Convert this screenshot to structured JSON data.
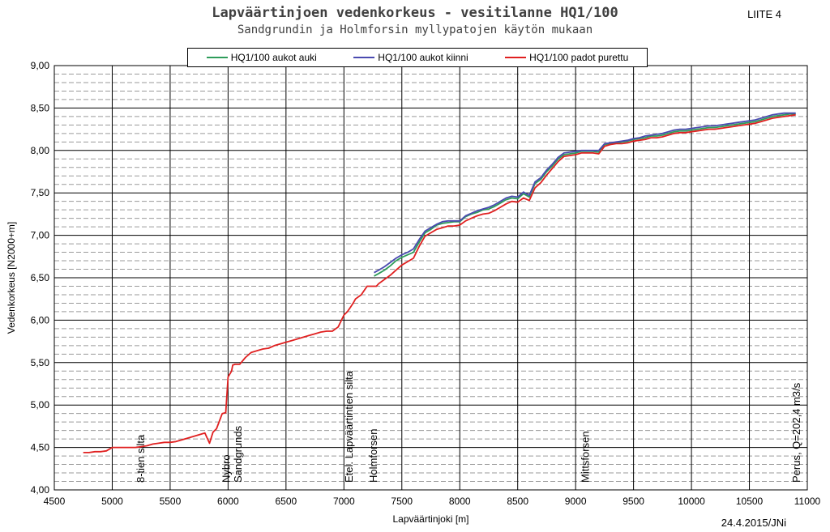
{
  "header": {
    "title": "Lapväärtinjoen vedenkorkeus - vesitilanne HQ1/100",
    "subtitle": "Sandgrundin ja Holmforsin myllypatojen käytön mukaan",
    "appendix": "LIITE 4",
    "date": "24.4.2015/JNi"
  },
  "chart_data": {
    "type": "line",
    "title": "Lapväärtinjoen vedenkorkeus - vesitilanne HQ1/100",
    "subtitle": "Sandgrundin ja Holmforsin myllypatojen käytön mukaan",
    "xlabel": "Lapväärtinjoki [m]",
    "ylabel": "Vedenkorkeus [N2000+m]",
    "xlim": [
      4500,
      11000
    ],
    "ylim": [
      4.0,
      9.0
    ],
    "xticks": [
      4500,
      5000,
      5500,
      6000,
      6500,
      7000,
      7500,
      8000,
      8500,
      9000,
      9500,
      10000,
      10500,
      11000
    ],
    "yticks": [
      "4,00",
      "4,50",
      "5,00",
      "5,50",
      "6,00",
      "6,50",
      "7,00",
      "7,50",
      "8,00",
      "8,50",
      "9,00"
    ],
    "grid": true,
    "legend_position": "top",
    "series": [
      {
        "name": "HQ1/100 aukot auki",
        "color": "#2e9c5a",
        "x": [
          7260,
          7300,
          7350,
          7400,
          7450,
          7500,
          7550,
          7600,
          7650,
          7700,
          7750,
          7800,
          7850,
          7900,
          7950,
          8000,
          8050,
          8100,
          8150,
          8200,
          8250,
          8300,
          8350,
          8400,
          8450,
          8500,
          8550,
          8600,
          8650,
          8700,
          8750,
          8800,
          8850,
          8900,
          8950,
          9000,
          9050,
          9100,
          9150,
          9200,
          9250,
          9300,
          9350,
          9400,
          9450,
          9500,
          9550,
          9600,
          9650,
          9700,
          9750,
          9800,
          9850,
          9900,
          9950,
          10000,
          10050,
          10100,
          10150,
          10200,
          10250,
          10300,
          10350,
          10400,
          10450,
          10500,
          10550,
          10600,
          10650,
          10700,
          10750,
          10800,
          10850,
          10900
        ],
        "y": [
          6.52,
          6.55,
          6.59,
          6.64,
          6.7,
          6.74,
          6.77,
          6.8,
          6.92,
          7.03,
          7.07,
          7.12,
          7.14,
          7.15,
          7.16,
          7.16,
          7.22,
          7.25,
          7.27,
          7.3,
          7.31,
          7.34,
          7.38,
          7.42,
          7.44,
          7.43,
          7.49,
          7.45,
          7.61,
          7.66,
          7.75,
          7.82,
          7.9,
          7.95,
          7.96,
          7.97,
          7.99,
          7.99,
          7.99,
          7.98,
          8.07,
          8.08,
          8.09,
          8.1,
          8.11,
          8.13,
          8.14,
          8.15,
          8.17,
          8.17,
          8.18,
          8.2,
          8.22,
          8.23,
          8.23,
          8.24,
          8.25,
          8.26,
          8.27,
          8.27,
          8.28,
          8.29,
          8.3,
          8.31,
          8.32,
          8.33,
          8.34,
          8.36,
          8.38,
          8.4,
          8.41,
          8.42,
          8.43,
          8.43
        ]
      },
      {
        "name": "HQ1/100 aukot kiinni",
        "color": "#4a4ab0",
        "x": [
          7260,
          7300,
          7350,
          7400,
          7450,
          7500,
          7550,
          7600,
          7650,
          7700,
          7750,
          7800,
          7850,
          7900,
          7950,
          8000,
          8050,
          8100,
          8150,
          8200,
          8250,
          8300,
          8350,
          8400,
          8450,
          8500,
          8550,
          8600,
          8650,
          8700,
          8750,
          8800,
          8850,
          8900,
          8950,
          9000,
          9050,
          9100,
          9150,
          9200,
          9250,
          9300,
          9350,
          9400,
          9450,
          9500,
          9550,
          9600,
          9650,
          9700,
          9750,
          9800,
          9850,
          9900,
          9950,
          10000,
          10050,
          10100,
          10150,
          10200,
          10250,
          10300,
          10350,
          10400,
          10450,
          10500,
          10550,
          10600,
          10650,
          10700,
          10750,
          10800,
          10850,
          10900
        ],
        "y": [
          6.56,
          6.59,
          6.63,
          6.68,
          6.73,
          6.77,
          6.8,
          6.84,
          6.95,
          7.05,
          7.09,
          7.13,
          7.16,
          7.17,
          7.17,
          7.17,
          7.23,
          7.26,
          7.29,
          7.31,
          7.33,
          7.36,
          7.4,
          7.44,
          7.46,
          7.45,
          7.51,
          7.47,
          7.63,
          7.68,
          7.77,
          7.84,
          7.92,
          7.97,
          7.98,
          7.99,
          8.0,
          8.0,
          8.0,
          8.0,
          8.08,
          8.09,
          8.1,
          8.11,
          8.12,
          8.14,
          8.15,
          8.17,
          8.18,
          8.19,
          8.2,
          8.22,
          8.24,
          8.25,
          8.25,
          8.26,
          8.27,
          8.28,
          8.29,
          8.29,
          8.3,
          8.31,
          8.32,
          8.33,
          8.34,
          8.35,
          8.36,
          8.38,
          8.4,
          8.42,
          8.43,
          8.44,
          8.44,
          8.44
        ]
      },
      {
        "name": "HQ1/100 padot purettu",
        "color": "#e02020",
        "x": [
          4750,
          4800,
          4850,
          4900,
          4950,
          5000,
          5050,
          5100,
          5150,
          5200,
          5250,
          5300,
          5350,
          5400,
          5450,
          5500,
          5550,
          5600,
          5650,
          5700,
          5750,
          5800,
          5840,
          5870,
          5900,
          5950,
          5980,
          6000,
          6030,
          6040,
          6060,
          6080,
          6100,
          6150,
          6200,
          6250,
          6300,
          6350,
          6400,
          6450,
          6500,
          6550,
          6600,
          6650,
          6700,
          6750,
          6800,
          6850,
          6900,
          6950,
          7000,
          7030,
          7050,
          7080,
          7100,
          7150,
          7200,
          7250,
          7280,
          7300,
          7350,
          7400,
          7450,
          7500,
          7550,
          7600,
          7650,
          7700,
          7750,
          7800,
          7850,
          7900,
          7950,
          8000,
          8050,
          8100,
          8150,
          8200,
          8250,
          8300,
          8350,
          8400,
          8450,
          8500,
          8550,
          8600,
          8650,
          8700,
          8750,
          8800,
          8850,
          8900,
          8950,
          9000,
          9050,
          9100,
          9150,
          9200,
          9250,
          9300,
          9350,
          9400,
          9450,
          9500,
          9550,
          9600,
          9650,
          9700,
          9750,
          9800,
          9850,
          9900,
          9950,
          10000,
          10050,
          10100,
          10150,
          10200,
          10250,
          10300,
          10350,
          10400,
          10450,
          10500,
          10550,
          10600,
          10650,
          10700,
          10750,
          10800,
          10850,
          10900
        ],
        "y": [
          4.44,
          4.44,
          4.45,
          4.45,
          4.46,
          4.5,
          4.5,
          4.5,
          4.5,
          4.5,
          4.51,
          4.52,
          4.54,
          4.55,
          4.56,
          4.56,
          4.57,
          4.59,
          4.61,
          4.63,
          4.65,
          4.67,
          4.55,
          4.68,
          4.72,
          4.9,
          4.91,
          5.33,
          5.4,
          5.47,
          5.48,
          5.48,
          5.48,
          5.56,
          5.62,
          5.64,
          5.66,
          5.67,
          5.7,
          5.72,
          5.74,
          5.76,
          5.78,
          5.8,
          5.82,
          5.84,
          5.86,
          5.87,
          5.87,
          5.92,
          6.06,
          6.1,
          6.14,
          6.2,
          6.25,
          6.3,
          6.4,
          6.4,
          6.4,
          6.43,
          6.48,
          6.53,
          6.59,
          6.65,
          6.69,
          6.73,
          6.87,
          6.99,
          7.03,
          7.07,
          7.09,
          7.11,
          7.11,
          7.12,
          7.17,
          7.2,
          7.23,
          7.25,
          7.26,
          7.29,
          7.33,
          7.37,
          7.4,
          7.39,
          7.44,
          7.41,
          7.56,
          7.62,
          7.71,
          7.79,
          7.87,
          7.93,
          7.94,
          7.95,
          7.97,
          7.97,
          7.97,
          7.96,
          8.05,
          8.07,
          8.08,
          8.08,
          8.09,
          8.11,
          8.12,
          8.13,
          8.15,
          8.15,
          8.16,
          8.18,
          8.2,
          8.21,
          8.21,
          8.22,
          8.23,
          8.24,
          8.25,
          8.25,
          8.26,
          8.27,
          8.28,
          8.29,
          8.3,
          8.31,
          8.32,
          8.34,
          8.36,
          8.38,
          8.39,
          8.4,
          8.41,
          8.42
        ]
      }
    ],
    "annotations": [
      {
        "x": 5220,
        "label": "8-tien silta"
      },
      {
        "x": 5960,
        "label": "Nybro"
      },
      {
        "x": 6060,
        "label": "Sandgrunds"
      },
      {
        "x": 7020,
        "label": "Etel. Lapväärtintien silta"
      },
      {
        "x": 7230,
        "label": "Holmforsen"
      },
      {
        "x": 9060,
        "label": "Mittsforsen"
      },
      {
        "x": 10880,
        "label": "Perus, Q=202,4 m3/s"
      }
    ]
  }
}
